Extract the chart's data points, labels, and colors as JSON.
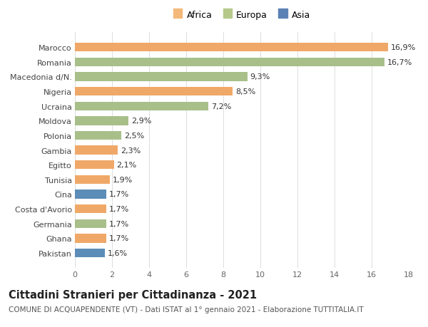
{
  "categories": [
    "Pakistan",
    "Ghana",
    "Germania",
    "Costa d'Avorio",
    "Cina",
    "Tunisia",
    "Egitto",
    "Gambia",
    "Polonia",
    "Moldova",
    "Ucraina",
    "Nigeria",
    "Macedonia d/N.",
    "Romania",
    "Marocco"
  ],
  "values": [
    1.6,
    1.7,
    1.7,
    1.7,
    1.7,
    1.9,
    2.1,
    2.3,
    2.5,
    2.9,
    7.2,
    8.5,
    9.3,
    16.7,
    16.9
  ],
  "labels": [
    "1,6%",
    "1,7%",
    "1,7%",
    "1,7%",
    "1,7%",
    "1,9%",
    "2,1%",
    "2,3%",
    "2,5%",
    "2,9%",
    "7,2%",
    "8,5%",
    "9,3%",
    "16,7%",
    "16,9%"
  ],
  "colors": [
    "#5b8db8",
    "#f0a868",
    "#a8bf8a",
    "#f0a868",
    "#5b8db8",
    "#f0a868",
    "#f0a868",
    "#f0a868",
    "#a8bf8a",
    "#a8bf8a",
    "#a8bf8a",
    "#f0a868",
    "#a8bf8a",
    "#a8bf8a",
    "#f0a868"
  ],
  "legend": [
    {
      "label": "Africa",
      "color": "#f4b97a"
    },
    {
      "label": "Europa",
      "color": "#b5c98a"
    },
    {
      "label": "Asia",
      "color": "#5b82b5"
    }
  ],
  "xlim": [
    0,
    18
  ],
  "xticks": [
    0,
    2,
    4,
    6,
    8,
    10,
    12,
    14,
    16,
    18
  ],
  "title": "Cittadini Stranieri per Cittadinanza - 2021",
  "subtitle": "COMUNE DI ACQUAPENDENTE (VT) - Dati ISTAT al 1° gennaio 2021 - Elaborazione TUTTITALIA.IT",
  "bg_color": "#ffffff",
  "bar_height": 0.6,
  "label_fontsize": 8,
  "tick_fontsize": 8,
  "title_fontsize": 10.5,
  "subtitle_fontsize": 7.5
}
